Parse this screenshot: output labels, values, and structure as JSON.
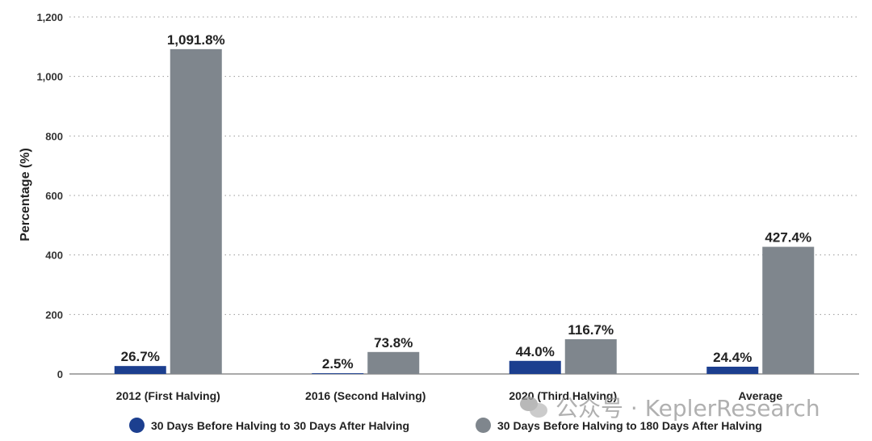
{
  "chart_data": {
    "type": "bar",
    "ylabel": "Percentage (%)",
    "ylim": [
      0,
      1200
    ],
    "yticks": [
      0,
      200,
      400,
      600,
      800,
      1000,
      1200
    ],
    "ytick_labels": [
      "0",
      "200",
      "400",
      "600",
      "800",
      "1,000",
      "1,200"
    ],
    "grid": "horizontal dotted",
    "categories": [
      "2012 (First Halving)",
      "2016 (Second Halving)",
      "2020 (Third Halving)",
      "Average"
    ],
    "series": [
      {
        "name": "30 Days Before Halving to 30 Days After Halving",
        "color": "#1c3f8f",
        "values": [
          26.7,
          2.5,
          44.0,
          24.4
        ],
        "labels": [
          "26.7%",
          "2.5%",
          "44.0%",
          "24.4%"
        ]
      },
      {
        "name": "30 Days Before Halving to 180 Days After Halving",
        "color": "#7f868d",
        "values": [
          1091.8,
          73.8,
          116.7,
          427.4
        ],
        "labels": [
          "1,091.8%",
          "73.8%",
          "116.7%",
          "427.4%"
        ]
      }
    ],
    "legend_position": "bottom"
  },
  "watermark": {
    "icon": "wechat-icon",
    "text": "公众号 · KeplerResearch"
  }
}
